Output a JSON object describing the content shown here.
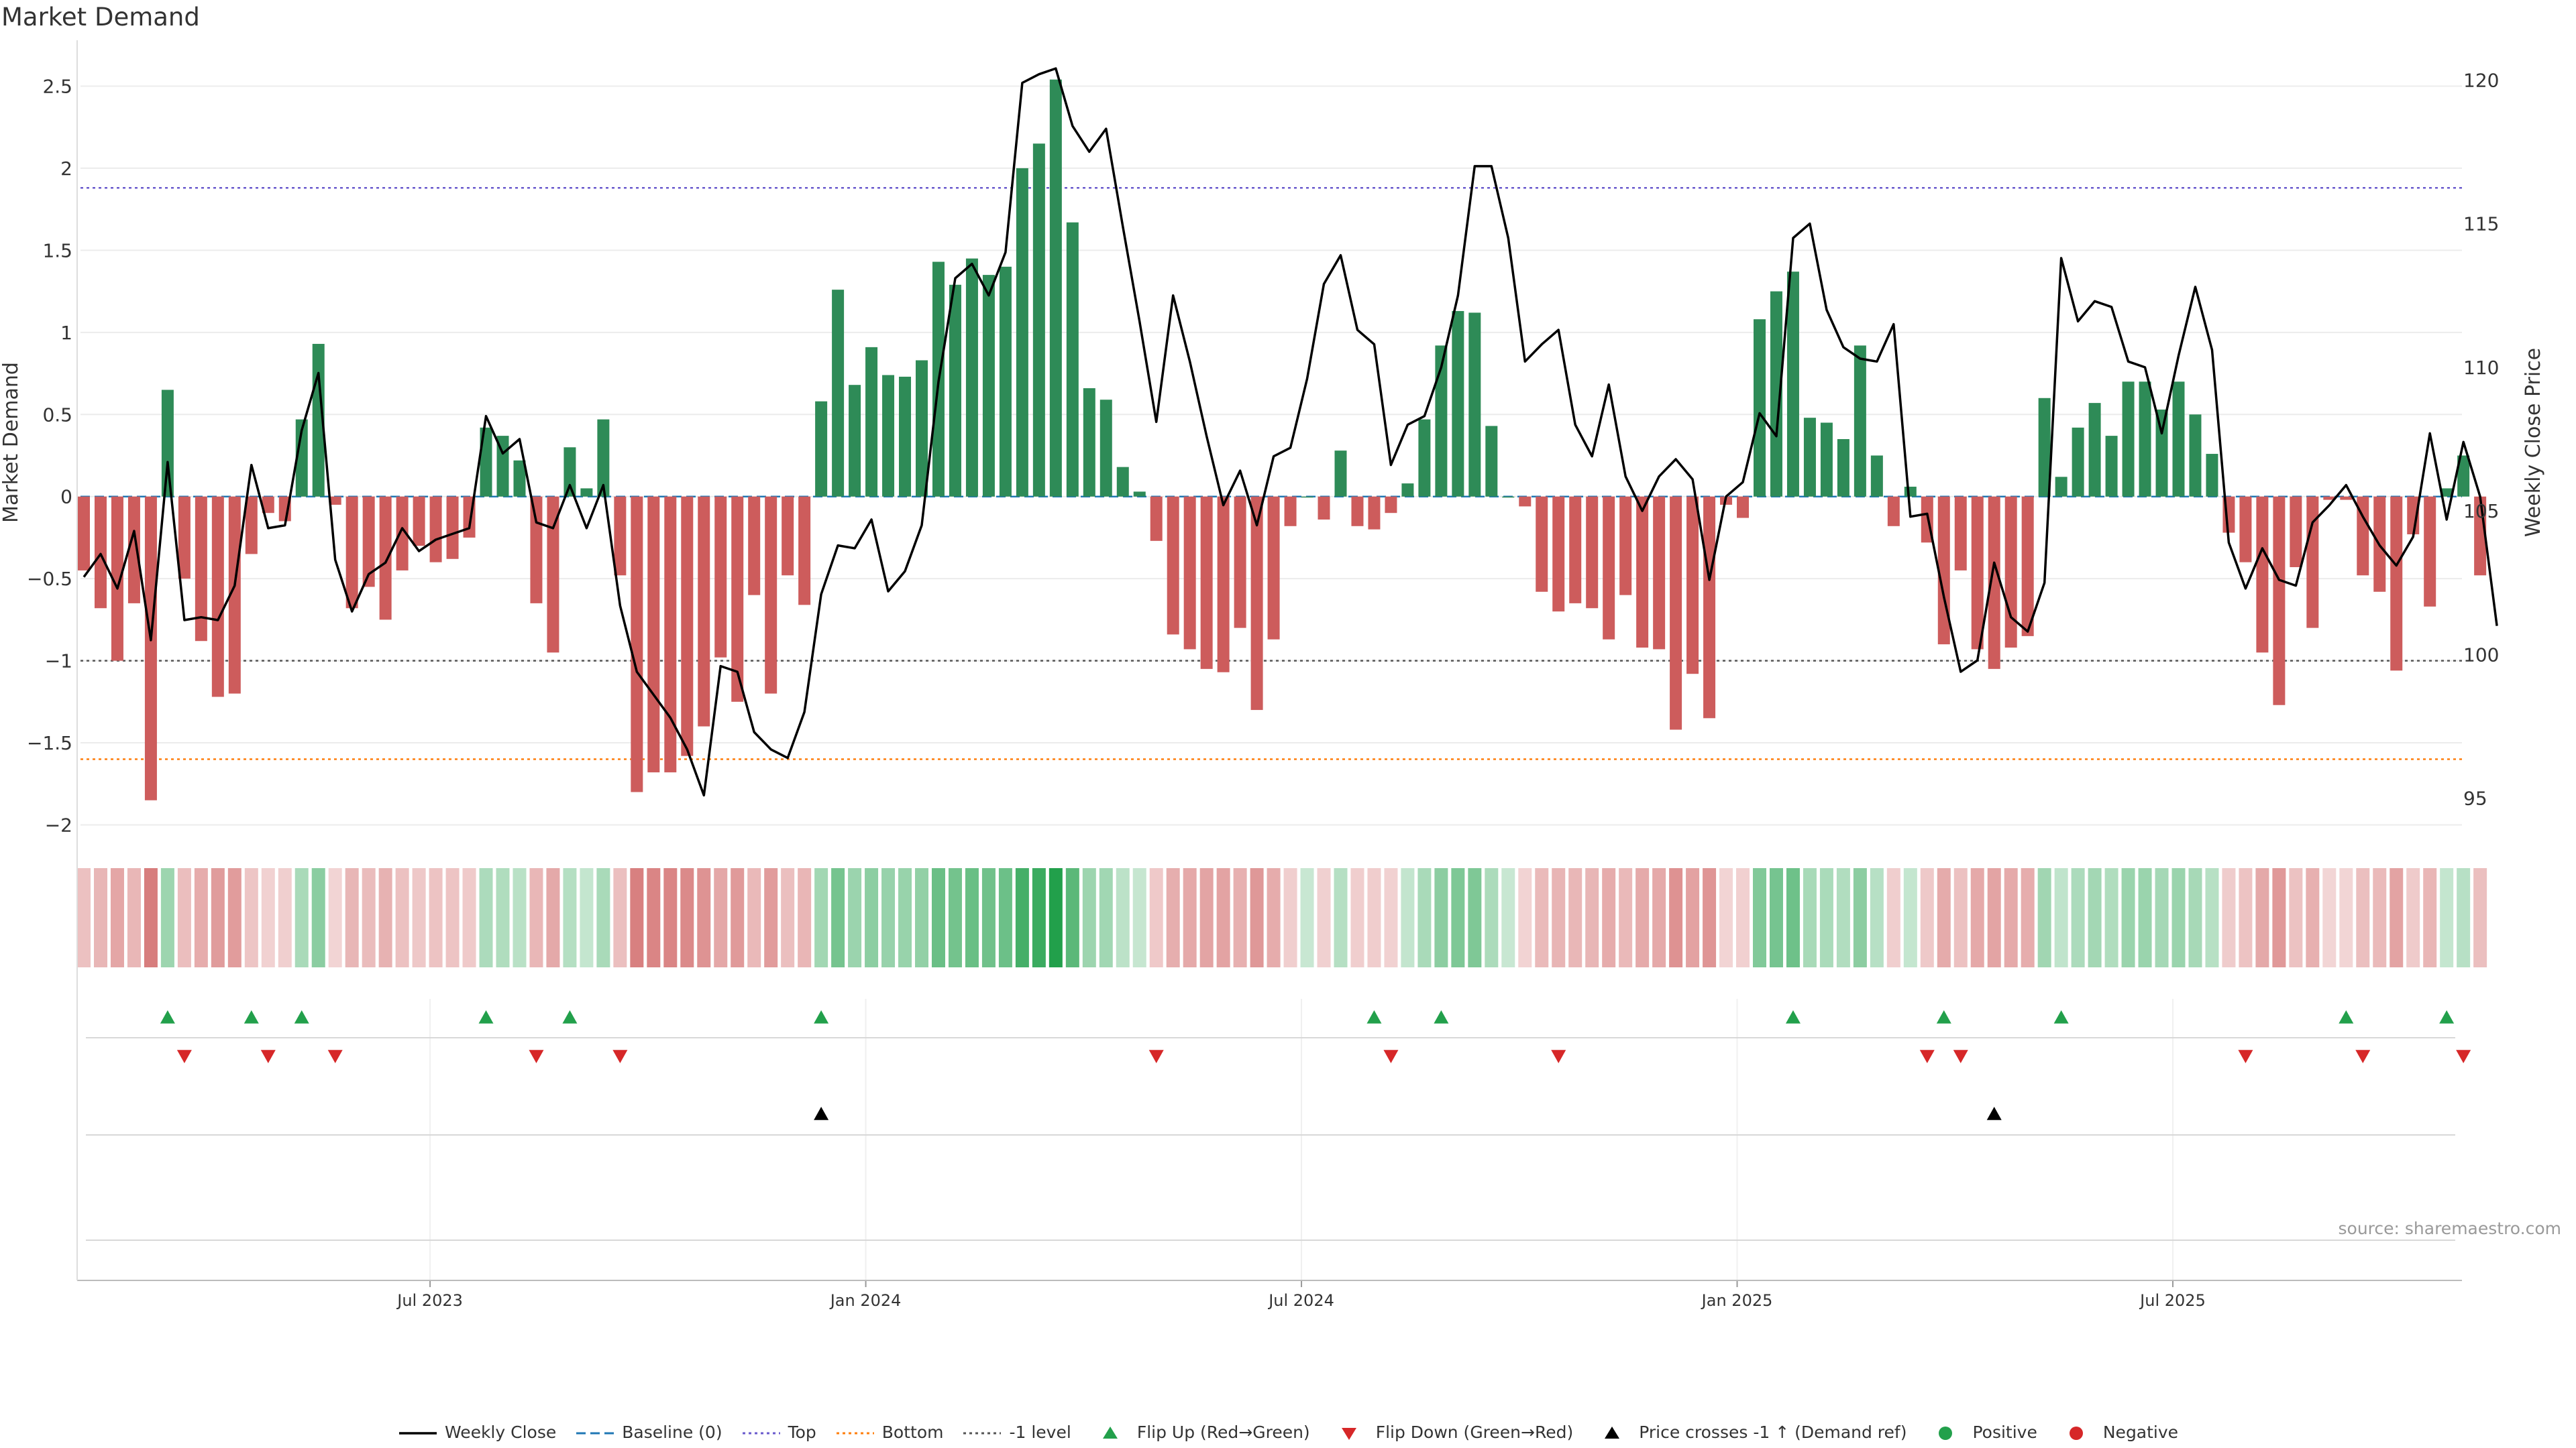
{
  "title": "Market Demand",
  "source": "source: sharemaestro.com",
  "colors": {
    "positive": "#2e8b57",
    "negative": "#cd5c5c",
    "price": "#000000",
    "baseline": "#1f77b4",
    "top": "#6a5acd",
    "bottom": "#ff7f0e",
    "minus_one": "#555555",
    "flip_up": "#22a04b",
    "flip_down": "#d62728"
  },
  "legend": [
    {
      "key": "price",
      "label": "Weekly Close",
      "shape": "line"
    },
    {
      "key": "baseline",
      "label": "Baseline (0)",
      "shape": "dash"
    },
    {
      "key": "top",
      "label": "Top",
      "shape": "dot"
    },
    {
      "key": "bottom",
      "label": "Bottom",
      "shape": "dot"
    },
    {
      "key": "minus_one",
      "label": "-1 level",
      "shape": "dot"
    },
    {
      "key": "flip_up",
      "label": "Flip Up (Red→Green)",
      "shape": "tri-up"
    },
    {
      "key": "flip_down",
      "label": "Flip Down (Green→Red)",
      "shape": "tri-down"
    },
    {
      "key": "price",
      "label": "Price crosses -1 ↑ (Demand ref)",
      "shape": "tri-up"
    },
    {
      "key": "flip_up",
      "label": "Positive",
      "shape": "circle"
    },
    {
      "key": "flip_down",
      "label": "Negative",
      "shape": "circle"
    }
  ],
  "chart_data": {
    "type": "bar",
    "x_axis": {
      "tick_labels": [
        "Jul 2023",
        "Jan 2024",
        "Jul 2024",
        "Jan 2025",
        "Jul 2025"
      ],
      "tick_index": [
        21,
        47,
        73,
        99,
        125
      ]
    },
    "left_axis": {
      "label": "Market Demand",
      "ylim": [
        -2.1,
        2.8
      ],
      "ticks": [
        -2,
        -1.5,
        -1,
        -0.5,
        0,
        0.5,
        1,
        1.5,
        2,
        2.5
      ],
      "tick_labels": [
        "−2",
        "−1.5",
        "−1",
        "−0.5",
        "0",
        "0.5",
        "1",
        "1.5",
        "2",
        "2.5"
      ]
    },
    "right_axis": {
      "label": "Weekly Close Price",
      "ylim": [
        93.5,
        121.5
      ],
      "ticks": [
        95,
        100,
        105,
        110,
        115,
        120
      ],
      "tick_labels": [
        "95",
        "100",
        "105",
        "110",
        "115",
        "120"
      ]
    },
    "levels": {
      "baseline": 0,
      "top": 1.88,
      "bottom": -1.6,
      "minus_one": -1.0
    },
    "series": [
      {
        "name": "Market Demand",
        "type": "bar",
        "values": [
          -0.45,
          -0.68,
          -1.0,
          -0.65,
          -1.85,
          0.65,
          -0.5,
          -0.88,
          -1.22,
          -1.2,
          -0.35,
          -0.1,
          -0.15,
          0.47,
          0.93,
          -0.05,
          -0.68,
          -0.55,
          -0.75,
          -0.45,
          -0.3,
          -0.4,
          -0.38,
          -0.25,
          0.42,
          0.37,
          0.22,
          -0.65,
          -0.95,
          0.3,
          0.05,
          0.47,
          -0.48,
          -1.8,
          -1.68,
          -1.68,
          -1.58,
          -1.4,
          -0.98,
          -1.25,
          -0.6,
          -1.2,
          -0.48,
          -0.66,
          0.58,
          1.26,
          0.68,
          0.91,
          0.74,
          0.73,
          0.83,
          1.43,
          1.29,
          1.45,
          1.35,
          1.4,
          2.0,
          2.15,
          2.54,
          1.67,
          0.66,
          0.59,
          0.18,
          0.03,
          -0.27,
          -0.84,
          -0.93,
          -1.05,
          -1.07,
          -0.8,
          -1.3,
          -0.87,
          -0.18,
          0.0,
          -0.14,
          0.28,
          -0.18,
          -0.2,
          -0.1,
          0.08,
          0.47,
          0.92,
          1.13,
          1.12,
          0.43,
          0.0,
          -0.06,
          -0.58,
          -0.7,
          -0.65,
          -0.68,
          -0.87,
          -0.6,
          -0.92,
          -0.93,
          -1.42,
          -1.08,
          -1.35,
          -0.05,
          -0.13,
          1.08,
          1.25,
          1.37,
          0.48,
          0.45,
          0.35,
          0.92,
          0.25,
          -0.18,
          0.06,
          -0.28,
          -0.9,
          -0.45,
          -0.93,
          -1.05,
          -0.92,
          -0.85,
          0.6,
          0.12,
          0.42,
          0.57,
          0.37,
          0.7,
          0.7,
          0.53,
          0.7,
          0.5,
          0.26,
          -0.22,
          -0.4,
          -0.95,
          -1.27,
          -0.43,
          -0.8,
          -0.02,
          -0.02,
          -0.48,
          -0.58,
          -1.06,
          -0.23,
          -0.67,
          0.05,
          0.25,
          -0.48
        ]
      },
      {
        "name": "Weekly Close",
        "type": "line",
        "axis": "right",
        "values": [
          102.7,
          103.5,
          102.3,
          104.3,
          100.5,
          106.7,
          101.2,
          101.3,
          101.2,
          102.4,
          106.6,
          104.4,
          104.5,
          107.8,
          109.8,
          103.3,
          101.5,
          102.8,
          103.2,
          104.4,
          103.6,
          104.0,
          104.2,
          104.4,
          108.3,
          107.0,
          107.5,
          104.6,
          104.4,
          105.9,
          104.4,
          105.9,
          101.7,
          99.4,
          98.6,
          97.8,
          96.7,
          95.1,
          99.6,
          99.4,
          97.3,
          96.7,
          96.4,
          98.0,
          102.1,
          103.8,
          103.7,
          104.7,
          102.2,
          102.9,
          104.5,
          109.5,
          113.1,
          113.6,
          112.5,
          114.0,
          119.9,
          120.2,
          120.4,
          118.4,
          117.5,
          118.3,
          114.9,
          111.6,
          108.1,
          112.5,
          110.2,
          107.6,
          105.2,
          106.4,
          104.5,
          106.9,
          107.2,
          109.6,
          112.9,
          113.9,
          111.3,
          110.8,
          106.6,
          108.0,
          108.3,
          110.0,
          112.5,
          117.0,
          117.0,
          114.5,
          110.2,
          110.8,
          111.3,
          108.0,
          106.9,
          109.4,
          106.2,
          105.0,
          106.2,
          106.8,
          106.1,
          102.6,
          105.5,
          106.0,
          108.4,
          107.6,
          114.5,
          115.0,
          112.0,
          110.7,
          110.3,
          110.2,
          111.5,
          104.8,
          104.9,
          102.0,
          99.4,
          99.8,
          103.2,
          101.3,
          100.8,
          102.5,
          113.8,
          111.6,
          112.3,
          112.1,
          110.2,
          110.0,
          107.7,
          110.4,
          112.8,
          110.6,
          103.9,
          102.3,
          103.7,
          102.6,
          102.4,
          104.6,
          105.2,
          105.9,
          104.8,
          103.8,
          103.1,
          104.1,
          107.7,
          104.7,
          107.4,
          105.5,
          101.0
        ]
      }
    ],
    "markers": {
      "flip_up_index": [
        5,
        10,
        13,
        24,
        29,
        44,
        77,
        81,
        102,
        111,
        118,
        135,
        141
      ],
      "flip_down_index": [
        6,
        11,
        15,
        27,
        32,
        64,
        78,
        88,
        110,
        112,
        129,
        136,
        142
      ],
      "price_cross_index": [
        44,
        114
      ]
    }
  }
}
